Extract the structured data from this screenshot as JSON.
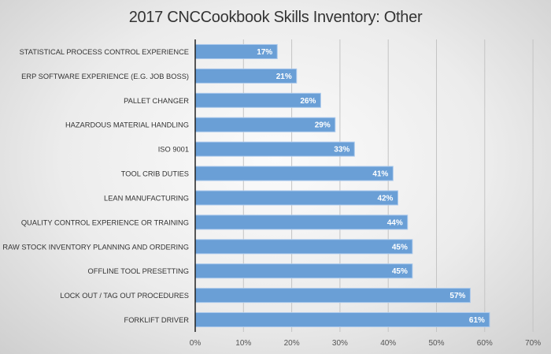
{
  "chart_data": {
    "type": "bar",
    "orientation": "horizontal",
    "title": "2017 CNCCookbook Skills Inventory: Other",
    "categories": [
      "STATISTICAL PROCESS CONTROL EXPERIENCE",
      "ERP SOFTWARE EXPERIENCE (E.G. JOB BOSS)",
      "PALLET CHANGER",
      "HAZARDOUS MATERIAL HANDLING",
      "ISO 9001",
      "TOOL CRIB DUTIES",
      "LEAN MANUFACTURING",
      "QUALITY CONTROL EXPERIENCE OR TRAINING",
      "RAW STOCK INVENTORY PLANNING AND ORDERING",
      "OFFLINE TOOL PRESETTING",
      "LOCK OUT / TAG OUT PROCEDURES",
      "FORKLIFT DRIVER"
    ],
    "values": [
      17,
      21,
      26,
      29,
      33,
      41,
      42,
      44,
      45,
      45,
      57,
      61
    ],
    "data_labels": [
      "17%",
      "21%",
      "26%",
      "29%",
      "33%",
      "41%",
      "42%",
      "44%",
      "45%",
      "45%",
      "57%",
      "61%"
    ],
    "xlim": [
      0,
      70
    ],
    "x_ticks": [
      "0%",
      "10%",
      "20%",
      "30%",
      "40%",
      "50%",
      "60%",
      "70%"
    ],
    "grid": "vertical",
    "legend": "none",
    "bar_color": "#6a9fd6"
  }
}
